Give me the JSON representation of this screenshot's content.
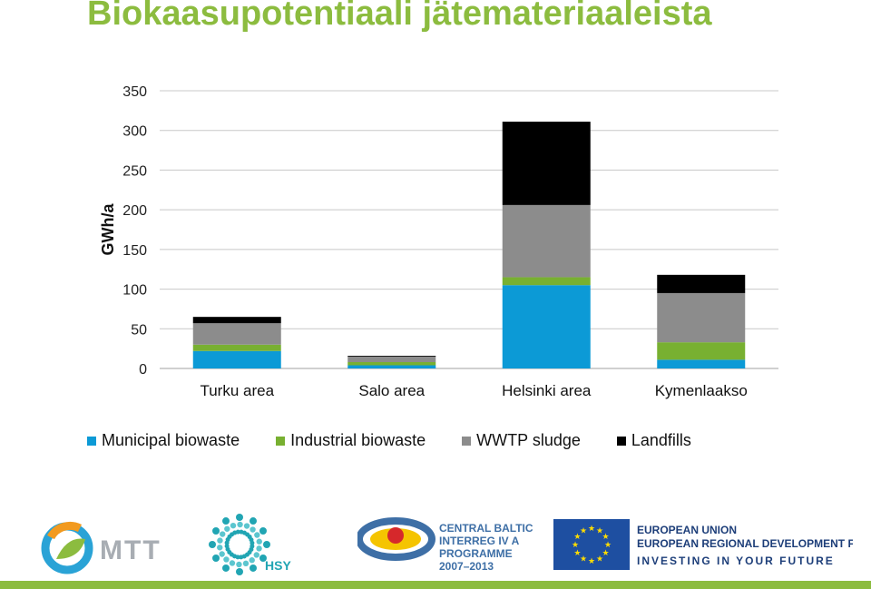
{
  "title": "Biokaasupotentiaali jätemateriaaleista",
  "chart_data": {
    "type": "bar",
    "stacked": true,
    "ylabel": "GWh/a",
    "xlabel": "",
    "ylim": [
      0,
      350
    ],
    "yticks": [
      0,
      50,
      100,
      150,
      200,
      250,
      300,
      350
    ],
    "grid": true,
    "legend_position": "bottom",
    "categories": [
      "Turku area",
      "Salo area",
      "Helsinki area",
      "Kymenlaakso"
    ],
    "series": [
      {
        "name": "Municipal biowaste",
        "color": "#0c9ad6",
        "values": [
          22,
          4,
          105,
          11
        ]
      },
      {
        "name": "Industrial biowaste",
        "color": "#78b031",
        "values": [
          8,
          4,
          10,
          22
        ]
      },
      {
        "name": "WWTP sludge",
        "color": "#8c8c8c",
        "values": [
          27,
          7,
          91,
          62
        ]
      },
      {
        "name": "Landfills",
        "color": "#000000",
        "values": [
          8,
          1,
          105,
          23
        ]
      }
    ]
  },
  "footer": {
    "mtt_logo": "MTT",
    "hsy_logo": "HSY",
    "central_baltic": [
      "CENTRAL BALTIC",
      "INTERREG IV A",
      "PROGRAMME",
      "2007–2013"
    ],
    "eu_lines": [
      "EUROPEAN UNION",
      "EUROPEAN REGIONAL DEVELOPMENT FUND"
    ],
    "eu_motto": "INVESTING IN YOUR FUTURE",
    "accent_color": "#8cbc3f",
    "eu_flag_color": "#1e4fa1",
    "eu_star_color": "#ffdd00"
  }
}
